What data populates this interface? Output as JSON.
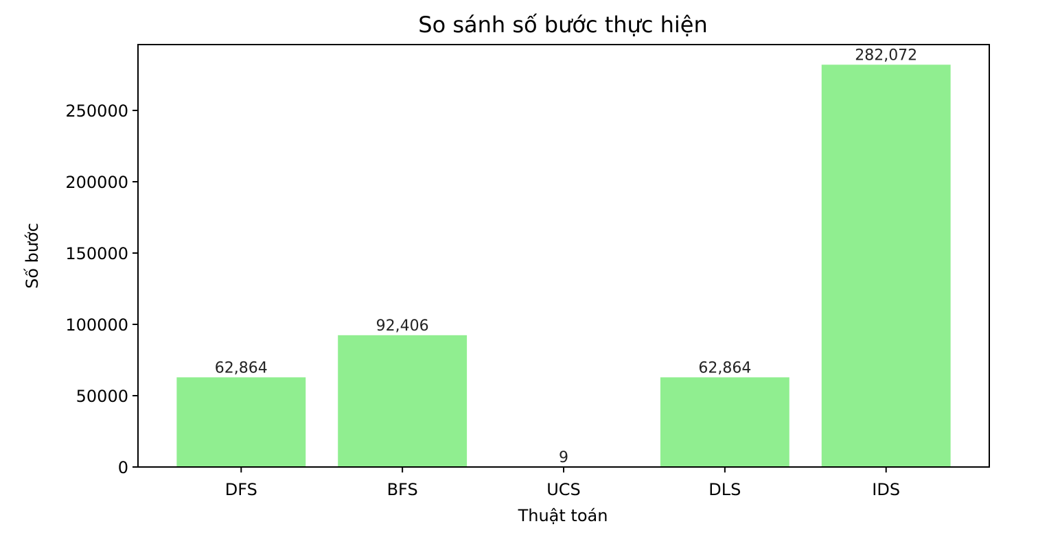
{
  "chart_data": {
    "type": "bar",
    "title": "So sánh số bước thực hiện",
    "xlabel": "Thuật toán",
    "ylabel": "Số bước",
    "categories": [
      "DFS",
      "BFS",
      "UCS",
      "DLS",
      "IDS"
    ],
    "values": [
      62864,
      92406,
      9,
      62864,
      282072
    ],
    "value_labels": [
      "62,864",
      "92,406",
      "9",
      "62,864",
      "282,072"
    ],
    "yticks": [
      0,
      50000,
      100000,
      150000,
      200000,
      250000
    ],
    "ytick_labels": [
      "0",
      "50000",
      "100000",
      "150000",
      "200000",
      "250000"
    ],
    "ylim": [
      0,
      296175.6
    ],
    "grid": false,
    "bar_color": "#90ee90"
  }
}
